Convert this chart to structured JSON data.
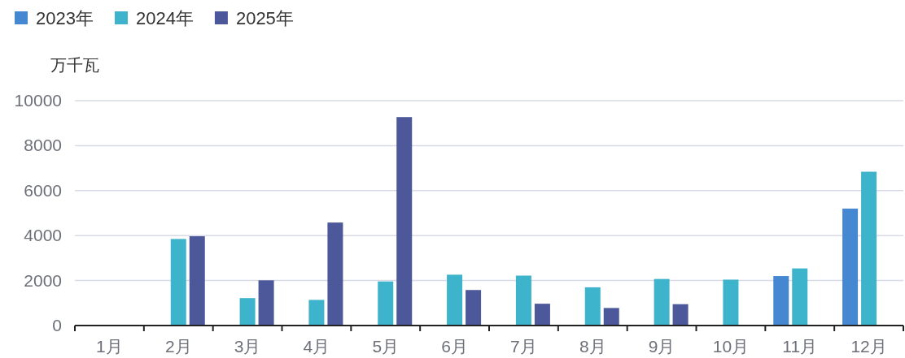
{
  "chart_data": {
    "type": "bar",
    "ylabel": "万千瓦",
    "categories": [
      "1月",
      "2月",
      "3月",
      "4月",
      "5月",
      "6月",
      "7月",
      "8月",
      "9月",
      "10月",
      "11月",
      "12月"
    ],
    "series": [
      {
        "name": "2023年",
        "color": "#4587d0",
        "values": [
          null,
          null,
          null,
          null,
          null,
          null,
          null,
          null,
          null,
          null,
          2200,
          5200
        ]
      },
      {
        "name": "2024年",
        "color": "#3eb3cc",
        "values": [
          null,
          3850,
          1220,
          1140,
          1960,
          2260,
          2220,
          1700,
          2070,
          2040,
          2540,
          6840
        ]
      },
      {
        "name": "2025年",
        "color": "#4c5899",
        "values": [
          null,
          3970,
          2010,
          4580,
          9270,
          1580,
          970,
          780,
          950,
          null,
          null,
          null
        ]
      }
    ],
    "ylim": [
      0,
      10000
    ],
    "yticks": [
      0,
      2000,
      4000,
      6000,
      8000,
      10000
    ],
    "grid": "y",
    "legend": "top left"
  }
}
